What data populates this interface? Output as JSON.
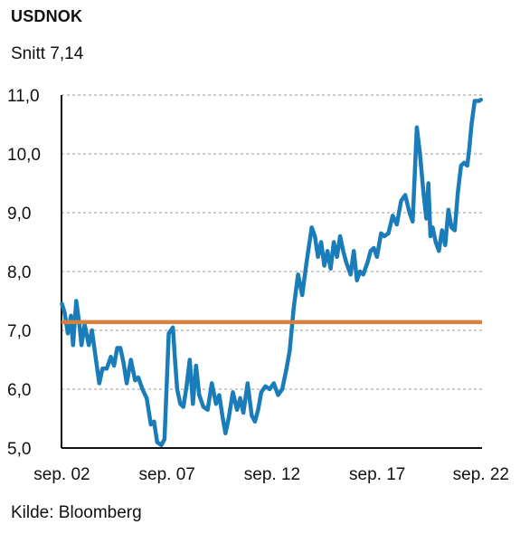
{
  "chart_data": {
    "type": "line",
    "title": "USDNOK",
    "subtitle": "Snitt 7,14",
    "source": "Kilde: Bloomberg",
    "xlabel": "",
    "ylabel": "",
    "ylim": [
      5.0,
      11.0
    ],
    "xlim": [
      2002.65,
      2022.65
    ],
    "yticks": [
      {
        "value": 5.0,
        "label": "5,0"
      },
      {
        "value": 6.0,
        "label": "6,0"
      },
      {
        "value": 7.0,
        "label": "7,0"
      },
      {
        "value": 8.0,
        "label": "8,0"
      },
      {
        "value": 9.0,
        "label": "9,0"
      },
      {
        "value": 10.0,
        "label": "10,0"
      },
      {
        "value": 11.0,
        "label": "11,0"
      }
    ],
    "xticks": [
      {
        "value": 2002.67,
        "label": "sep. 02"
      },
      {
        "value": 2007.67,
        "label": "sep. 07"
      },
      {
        "value": 2012.67,
        "label": "sep. 12"
      },
      {
        "value": 2017.67,
        "label": "sep. 17"
      },
      {
        "value": 2022.67,
        "label": "sep. 22"
      }
    ],
    "grid": "horizontal-dashed",
    "colors": {
      "series": "#1a7cb8",
      "average": "#d4823f"
    },
    "series": [
      {
        "x": [
          2002.67,
          2002.8,
          2002.95,
          2003.1,
          2003.2,
          2003.35,
          2003.5,
          2003.6,
          2003.75,
          2003.95,
          2004.1,
          2004.25,
          2004.45,
          2004.6,
          2004.8,
          2005.0,
          2005.15,
          2005.3,
          2005.45,
          2005.6,
          2005.75,
          2005.95,
          2006.15,
          2006.3,
          2006.5,
          2006.7,
          2006.9,
          2007.05,
          2007.2,
          2007.4,
          2007.55,
          2007.75,
          2007.95,
          2008.05,
          2008.15,
          2008.3,
          2008.45,
          2008.6,
          2008.75,
          2008.9,
          2009.05,
          2009.2,
          2009.4,
          2009.6,
          2009.8,
          2010.0,
          2010.15,
          2010.3,
          2010.45,
          2010.6,
          2010.8,
          2011.0,
          2011.15,
          2011.3,
          2011.5,
          2011.7,
          2011.85,
          2012.0,
          2012.15,
          2012.35,
          2012.55,
          2012.75,
          2012.95,
          2013.15,
          2013.35,
          2013.5,
          2013.7,
          2013.9,
          2014.1,
          2014.3,
          2014.45,
          2014.55,
          2014.7,
          2014.85,
          2015.0,
          2015.15,
          2015.3,
          2015.45,
          2015.6,
          2015.75,
          2015.9,
          2016.05,
          2016.2,
          2016.4,
          2016.55,
          2016.7,
          2016.85,
          2017.0,
          2017.2,
          2017.35,
          2017.5,
          2017.65,
          2017.85,
          2018.0,
          2018.2,
          2018.4,
          2018.6,
          2018.8,
          2019.0,
          2019.2,
          2019.35,
          2019.55,
          2019.7,
          2019.85,
          2020.0,
          2020.1,
          2020.2,
          2020.3,
          2020.45,
          2020.6,
          2020.75,
          2020.9,
          2021.05,
          2021.2,
          2021.35,
          2021.5,
          2021.65,
          2021.8,
          2021.95,
          2022.05,
          2022.15,
          2022.3,
          2022.4,
          2022.5,
          2022.6
        ],
        "values": [
          7.45,
          7.3,
          6.95,
          7.25,
          6.75,
          7.5,
          7.1,
          6.75,
          7.1,
          6.75,
          7.0,
          6.6,
          6.1,
          6.35,
          6.35,
          6.55,
          6.4,
          6.7,
          6.7,
          6.45,
          6.1,
          6.5,
          6.15,
          6.2,
          6.0,
          5.85,
          5.4,
          5.45,
          5.1,
          5.05,
          5.15,
          6.95,
          7.05,
          6.5,
          6.0,
          5.75,
          5.7,
          6.05,
          6.5,
          5.75,
          6.4,
          5.9,
          5.7,
          5.65,
          6.1,
          5.75,
          5.9,
          5.55,
          5.25,
          5.5,
          5.95,
          5.65,
          5.85,
          5.6,
          6.1,
          5.55,
          5.45,
          5.65,
          5.95,
          6.05,
          6.0,
          6.1,
          5.9,
          6.0,
          6.35,
          6.65,
          7.4,
          7.95,
          7.6,
          8.15,
          8.5,
          8.75,
          8.6,
          8.25,
          8.5,
          8.1,
          8.35,
          8.05,
          8.5,
          8.25,
          8.6,
          8.35,
          8.15,
          7.95,
          8.35,
          7.85,
          8.0,
          7.95,
          8.15,
          8.35,
          8.4,
          8.25,
          8.65,
          8.6,
          8.65,
          8.95,
          8.8,
          9.2,
          9.3,
          9.0,
          8.85,
          10.45,
          10.0,
          9.4,
          8.9,
          9.5,
          8.6,
          8.75,
          8.5,
          8.35,
          8.7,
          8.45,
          9.05,
          8.75,
          8.7,
          9.35,
          9.8,
          9.85,
          9.8,
          10.1,
          10.5,
          10.9,
          10.9,
          10.9,
          10.92
        ]
      }
    ],
    "reference_lines": [
      {
        "value": 7.14
      }
    ]
  }
}
